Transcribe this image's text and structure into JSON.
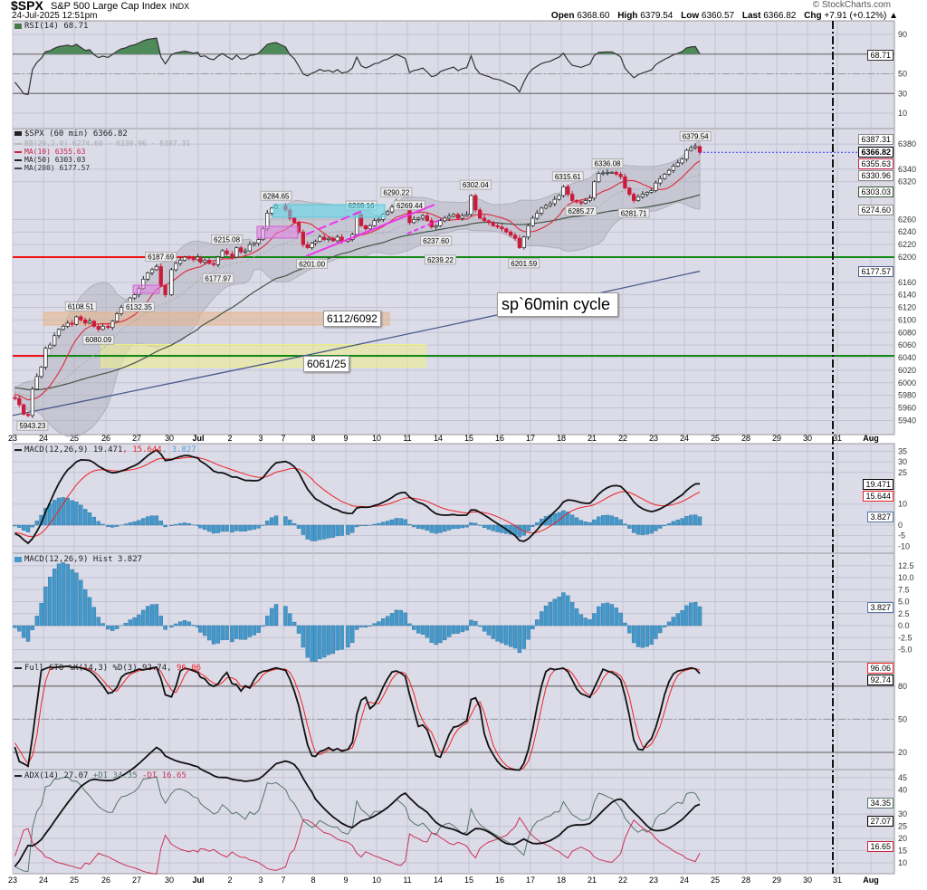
{
  "header": {
    "symbol": "$SPX",
    "name": "S&P 500 Large Cap Index",
    "exchange": "INDX",
    "datetime": "24-Jul-2025 12:51pm",
    "watermark": "© StockCharts.com",
    "quote": {
      "open_label": "Open",
      "open": "6368.60",
      "high_label": "High",
      "high": "6379.54",
      "low_label": "Low",
      "low": "6360.57",
      "last_label": "Last",
      "last": "6366.82",
      "chg_label": "Chg",
      "chg": "+7.91 (+0.12%) ▲"
    }
  },
  "legends": {
    "rsi": "RSI(14) 68.71",
    "price": "$SPX (60 min) 6366.82",
    "bb": "BB(20,2.0) 6274.60 - 6330.96 - 6387.31",
    "ma10": "MA(10) 6355.63",
    "ma50": "MA(50) 6303.03",
    "ma200": "MA(200) 6177.57",
    "macd_a": "MACD(12,26,9) 19.471",
    "macd_b": ", 15.644",
    "macd_c": ", 3.827",
    "hist": "MACD(12,26,9) Hist 3.827",
    "sto_a": "Full STO %K(14,3) %D(3) 92.74,",
    "sto_b": " 96.06",
    "adx_a": "ADX(14) 27.07",
    "adx_b": " +DI 34.35",
    "adx_c": " -DI 16.65"
  },
  "annotations": {
    "zone1": "6112/6092",
    "zone2": "6061/25",
    "cycle": "sp`60min cycle"
  },
  "value_tags": {
    "rsi": [
      {
        "v": "68.71",
        "color": "#333333"
      }
    ],
    "price": [
      {
        "v": "6387.31",
        "color": "#888888",
        "p": 6387.31
      },
      {
        "v": "6366.82",
        "color": "#000000",
        "p": 6366.82,
        "bold": true
      },
      {
        "v": "6355.63",
        "color": "#cc2244",
        "p": 6355.63
      },
      {
        "v": "6330.96",
        "color": "#888888",
        "p": 6330.96
      },
      {
        "v": "6303.03",
        "color": "#335533",
        "p": 6303.03
      },
      {
        "v": "6274.60",
        "color": "#888888",
        "p": 6274.6
      },
      {
        "v": "6177.57",
        "color": "#4a5a8a",
        "p": 6177.57
      }
    ],
    "macd": [
      {
        "v": "19.471",
        "color": "#000000",
        "p": 19.471
      },
      {
        "v": "15.644",
        "color": "#ee2222",
        "p": 15.644
      },
      {
        "v": "3.827",
        "color": "#5577aa",
        "p": 3.827
      }
    ],
    "hist": [
      {
        "v": "3.827",
        "color": "#5577aa",
        "p": 3.827
      }
    ],
    "sto": [
      {
        "v": "96.06",
        "color": "#ee2222",
        "p": 96.06
      },
      {
        "v": "92.74",
        "color": "#000000",
        "p": 92.74
      }
    ],
    "adx": [
      {
        "v": "34.35",
        "color": "#557766",
        "p": 34.35
      },
      {
        "v": "27.07",
        "color": "#000000",
        "p": 27.07
      },
      {
        "v": "16.65",
        "color": "#cc2244",
        "p": 16.65
      }
    ]
  },
  "chart_data": {
    "type": "candlestick",
    "interval": "60 min",
    "x_labels": [
      "23",
      "24",
      "25",
      "26",
      "27",
      "30",
      "Jul",
      "2",
      "3",
      "7",
      "8",
      "9",
      "10",
      "11",
      "14",
      "15",
      "16",
      "17",
      "18",
      "21",
      "22",
      "23",
      "24",
      "25",
      "28",
      "29",
      "30",
      "31",
      "Aug"
    ],
    "x_bold": [
      "Jul",
      "Aug"
    ],
    "hourly_closes": [
      [
        5975,
        5965,
        5950,
        5948,
        5990,
        6010,
        6025
      ],
      [
        6055,
        6060,
        6075,
        6085,
        6090,
        6095,
        6093
      ],
      [
        6105,
        6100,
        6095,
        6098,
        6090,
        6085,
        6090
      ],
      [
        6088,
        6098,
        6110,
        6120,
        6125,
        6135,
        6140
      ],
      [
        6150,
        6165,
        6175,
        6180,
        6185,
        6155,
        6140
      ],
      [
        6180,
        6190,
        6195,
        6200,
        6198,
        6196,
        6200
      ],
      [
        6192,
        6195,
        6190,
        6188,
        6200,
        6210,
        6205
      ],
      [
        6200,
        6215,
        6208,
        6210,
        6220,
        6222,
        6228
      ],
      [
        6245,
        6270,
        6278,
        6282
      ],
      [
        6275,
        6262,
        6255,
        6240,
        6220,
        6215,
        6222
      ],
      [
        6225,
        6232,
        6228,
        6230,
        6226,
        6232,
        6225
      ],
      [
        6228,
        6236,
        6268,
        6250,
        6245,
        6250,
        6258
      ],
      [
        6260,
        6268,
        6272,
        6280,
        6288,
        6285,
        6282
      ],
      [
        6255,
        6260,
        6262,
        6266,
        6258,
        6248,
        6250
      ],
      [
        6258,
        6262,
        6265,
        6268,
        6262,
        6266,
        6268
      ],
      [
        6298,
        6275,
        6262,
        6258,
        6255,
        6250,
        6248
      ],
      [
        6245,
        6240,
        6235,
        6230,
        6215,
        6232,
        6250
      ],
      [
        6262,
        6270,
        6278,
        6282,
        6285,
        6292,
        6298
      ],
      [
        6312,
        6300,
        6290,
        6288,
        6286,
        6290,
        6294
      ],
      [
        6320,
        6333,
        6334,
        6335,
        6335,
        6332,
        6328
      ],
      [
        6310,
        6300,
        6290,
        6296,
        6300,
        6303,
        6306
      ],
      [
        6318,
        6325,
        6332,
        6338,
        6345,
        6350,
        6356
      ],
      [
        6370,
        6374,
        6376,
        6366.82
      ]
    ],
    "price_annotations": [
      {
        "label": "5943.23",
        "session": 0,
        "type": "low"
      },
      {
        "label": "6108.51",
        "session": 2,
        "type": "high"
      },
      {
        "label": "6080.09",
        "session": 2,
        "type": "low"
      },
      {
        "label": "6187.69",
        "session": 4,
        "type": "high"
      },
      {
        "label": "6132.35",
        "session": 4,
        "type": "low"
      },
      {
        "label": "6215.08",
        "session": 6,
        "type": "high"
      },
      {
        "label": "6177.97",
        "session": 6,
        "type": "low"
      },
      {
        "label": "6284.65",
        "session": 8,
        "type": "high"
      },
      {
        "label": "6201.00",
        "session": 9,
        "type": "low"
      },
      {
        "label": "6269.16",
        "session": 11,
        "type": "high"
      },
      {
        "label": "6290.22",
        "session": 12,
        "type": "high"
      },
      {
        "label": "6269.44",
        "session": 13,
        "type": "high"
      },
      {
        "label": "6237.60",
        "session": 13,
        "type": "low"
      },
      {
        "label": "6239.22",
        "session": 14,
        "type": "low"
      },
      {
        "label": "6302.04",
        "session": 15,
        "type": "high"
      },
      {
        "label": "6201.59",
        "session": 16,
        "type": "low"
      },
      {
        "label": "6315.61",
        "session": 18,
        "type": "high"
      },
      {
        "label": "6285.27",
        "session": 18,
        "type": "low"
      },
      {
        "label": "6336.08",
        "session": 19,
        "type": "high"
      },
      {
        "label": "6281.71",
        "session": 20,
        "type": "low"
      },
      {
        "label": "6379.54",
        "session": 22,
        "type": "high"
      }
    ],
    "ma200": {
      "start": 5948,
      "end": 6177.57
    },
    "support_lines": [
      6200,
      6043
    ],
    "zones": [
      {
        "label": "6112/6092",
        "low": 6092,
        "high": 6112,
        "color": "#e8b48a"
      },
      {
        "label": "6061/25",
        "low": 6025,
        "high": 6061,
        "color": "#eeee88"
      }
    ],
    "ticks": {
      "rsi": [
        90,
        50,
        30,
        10
      ],
      "price": [
        6380,
        6340,
        6320,
        6260,
        6240,
        6220,
        6200,
        6160,
        6140,
        6120,
        6100,
        6080,
        6060,
        6040,
        6020,
        6000,
        5980,
        5960,
        5940
      ],
      "macd": [
        35,
        30,
        25,
        10,
        0,
        -5,
        -10
      ],
      "hist": [
        "12.5",
        "10.0",
        "7.5",
        "5.0",
        "2.5",
        "0.0",
        "-2.5",
        "-5.0"
      ],
      "sto": [
        80,
        50,
        20
      ],
      "adx": [
        45,
        40,
        30,
        25,
        20,
        15,
        10
      ]
    },
    "colors": {
      "up": "#ffffff",
      "down": "#cc1a3a",
      "ma10": "#dd3344",
      "ma50": "#445544",
      "ma200": "#4a5a8a",
      "signal": "#ee2222",
      "hist": "#4499cc",
      "plus_di": "#557766",
      "minus_di": "#cc3355",
      "panel_bg": "#dcdce9"
    }
  }
}
